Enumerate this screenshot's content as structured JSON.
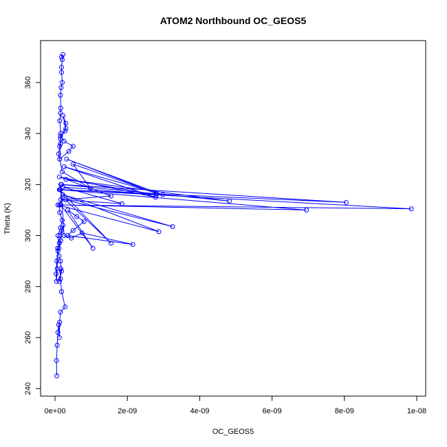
{
  "chart_data": {
    "type": "line",
    "title": "ATOM2 Northbound OC_GEOS5",
    "xlabel": "OC_GEOS5",
    "ylabel": "Theta (K)",
    "xlim": [
      0,
      1e-08
    ],
    "ylim": [
      240,
      375
    ],
    "x_ticks": [
      0,
      2e-09,
      4e-09,
      6e-09,
      8e-09,
      1e-08
    ],
    "x_tick_labels": [
      "0e+00",
      "2e-09",
      "4e-09",
      "6e-09",
      "8e-09",
      "1e-08"
    ],
    "y_ticks": [
      240,
      260,
      280,
      300,
      320,
      340,
      360
    ],
    "y_tick_labels": [
      "240",
      "260",
      "280",
      "300",
      "320",
      "340",
      "360"
    ],
    "grid": false,
    "legend": "none",
    "series_color": "#0000ff",
    "marker": "open-circle",
    "series": [
      {
        "x": [
          5e-11,
          4e-11,
          6e-11,
          8e-11,
          1e-10,
          1.2e-10,
          1.3e-10,
          1.5e-10,
          2.8e-10,
          1.8e-10,
          1.5e-10,
          1.6e-10,
          1.2e-10,
          1.8e-10,
          1.5e-10,
          1.1e-10,
          7e-11,
          6e-11,
          4e-11,
          3e-11,
          5e-11,
          8e-11,
          1.2e-10,
          1.4e-10,
          1.8e-10,
          2.2e-10,
          1.6e-10,
          1.1e-10,
          8e-11,
          1.5e-10,
          2e-10,
          1.3e-10,
          1.2e-10,
          2e-10,
          1.3e-10,
          1.6e-10,
          2.5e-10,
          4.5e-10,
          7.5e-10,
          2.15e-09,
          3.5e-10,
          5e-10,
          8e-10,
          6e-10,
          3.5e-10,
          1.05e-09,
          1.6e-10,
          6.95e-09,
          1.2e-10,
          1.55e-09,
          2.95e-10,
          3.25e-09,
          2.2e-10,
          2.87e-09,
          8e-11,
          9.85e-09,
          1.5e-10,
          8.05e-09,
          1.8e-10,
          4.82e-09,
          3e-10,
          2.8e-09,
          2.2e-10,
          1.85e-09,
          1.6e-10,
          1.55e-09,
          1.2e-10,
          2.78e-09,
          2.5e-10,
          2.98e-09,
          3.2e-10,
          2.8e-09,
          5e-10,
          9.8e-10,
          2e-10,
          1.3e-10,
          3.8e-10,
          5e-10,
          2.5e-10,
          1.5e-10,
          2.8e-10,
          3e-10,
          2.2e-10,
          3e-10,
          1.5e-10,
          1.3e-10,
          1e-10,
          1.3e-10,
          1.5e-10,
          1.6e-10,
          1.3e-10,
          1.5e-10,
          1.6e-10,
          1.5e-10,
          1.7e-10,
          2e-10,
          1.8e-10,
          1.8e-10,
          2e-10,
          2.2e-10,
          1.8e-10
        ],
        "y": [
          245,
          251,
          257,
          262,
          265,
          260,
          266,
          270,
          272,
          278,
          283,
          287,
          282,
          286,
          290,
          292,
          295,
          287,
          282,
          285,
          290,
          294,
          297,
          300,
          302,
          304,
          298,
          295,
          300,
          303,
          306,
          309,
          312,
          315,
          318,
          320,
          300,
          299,
          301,
          296.5,
          300,
          302,
          305.5,
          307.5,
          310,
          295,
          312,
          310,
          318,
          297,
          314,
          303.5,
          316,
          301.5,
          312,
          310.5,
          318,
          313,
          320,
          313.5,
          322,
          316,
          319,
          312.5,
          314,
          315.5,
          323,
          315,
          327,
          316,
          330,
          316.5,
          328,
          318.5,
          325,
          330,
          333,
          335,
          337,
          339,
          341,
          344,
          347,
          342,
          338,
          335,
          332,
          330,
          336,
          340,
          345,
          348,
          350,
          355,
          358,
          360,
          364,
          366,
          369,
          371,
          370
        ]
      }
    ]
  }
}
